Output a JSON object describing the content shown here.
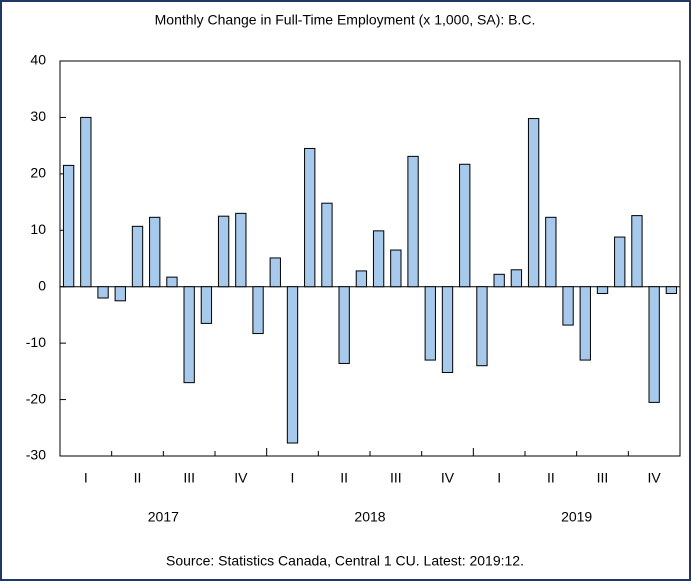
{
  "chart_data": {
    "type": "bar",
    "title": "Monthly Change in Full-Time Employment (x 1,000, SA): B.C.",
    "source": "Source: Statistics Canada, Central 1 CU. Latest: 2019:12.",
    "categories": [
      null,
      "I",
      null,
      null,
      "II",
      null,
      null,
      "III",
      null,
      null,
      "IV",
      null,
      null,
      "I",
      null,
      null,
      "II",
      null,
      null,
      "III",
      null,
      null,
      "IV",
      null,
      null,
      "I",
      null,
      null,
      "II",
      null,
      null,
      "III",
      null,
      null,
      "IV",
      null
    ],
    "years": [
      "2017",
      "2018",
      "2019"
    ],
    "values": [
      21.5,
      30,
      -2,
      -2.5,
      10.7,
      12.3,
      1.7,
      -17,
      -6.5,
      12.5,
      13,
      -8.3,
      5.1,
      -27.7,
      24.5,
      14.8,
      -13.6,
      2.8,
      9.9,
      6.5,
      23.1,
      -13,
      -15.2,
      21.7,
      -14,
      2.2,
      3,
      29.8,
      12.3,
      -6.8,
      -13,
      -1.2,
      8.8,
      12.6,
      -20.5,
      -1.2
    ],
    "color": "#a6c9ec",
    "ylim": [
      -30,
      40
    ],
    "yticks": [
      -30,
      -20,
      -10,
      0,
      10,
      20,
      30,
      40
    ],
    "grid": false
  }
}
